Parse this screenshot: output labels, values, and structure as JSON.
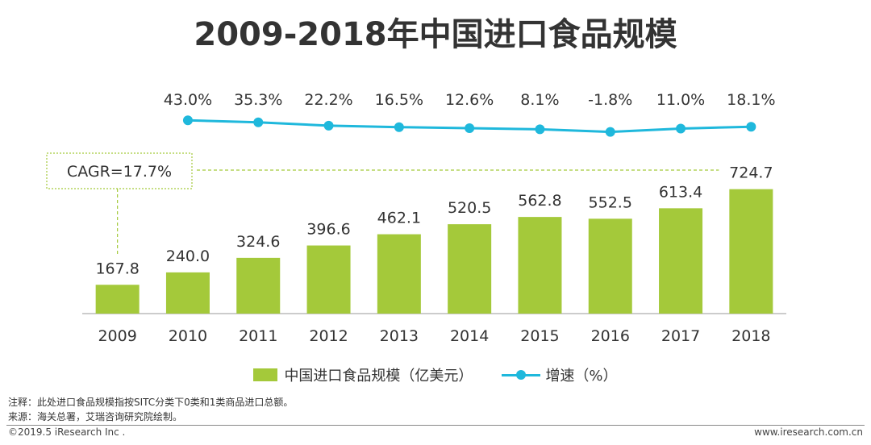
{
  "title": "2009-2018年中国进口食品规模",
  "chart_data": {
    "type": "bar",
    "categories": [
      "2009",
      "2010",
      "2011",
      "2012",
      "2013",
      "2014",
      "2015",
      "2016",
      "2017",
      "2018"
    ],
    "series": [
      {
        "name": "中国进口食品规模（亿美元）",
        "type": "bar",
        "color": "#a4c93a",
        "values": [
          167.8,
          240.0,
          324.6,
          396.6,
          462.1,
          520.5,
          562.8,
          552.5,
          613.4,
          724.7
        ],
        "labels": [
          "167.8",
          "240.0",
          "324.6",
          "396.6",
          "462.1",
          "520.5",
          "562.8",
          "552.5",
          "613.4",
          "724.7"
        ]
      },
      {
        "name": "增速（%）",
        "type": "line",
        "color": "#1fb8dc",
        "values": [
          43.0,
          35.3,
          22.2,
          16.5,
          12.6,
          8.1,
          -1.8,
          11.0,
          18.1
        ],
        "x": [
          "2010",
          "2011",
          "2012",
          "2013",
          "2014",
          "2015",
          "2016",
          "2017",
          "2018"
        ],
        "labels": [
          "43.0%",
          "35.3%",
          "22.2%",
          "16.5%",
          "12.6%",
          "8.1%",
          "-1.8%",
          "11.0%",
          "18.1%"
        ]
      }
    ],
    "annotation": "CAGR=17.7%",
    "legend_position": "bottom",
    "grid": false
  },
  "notes": {
    "note1": "注释：此处进口食品规模指按SITC分类下0类和1类商品进口总额。",
    "note2": "来源：海关总署，艾瑞咨询研究院绘制。"
  },
  "footer": {
    "copyright": "©2019.5 iResearch Inc .",
    "website": "www.iresearch.com.cn"
  }
}
